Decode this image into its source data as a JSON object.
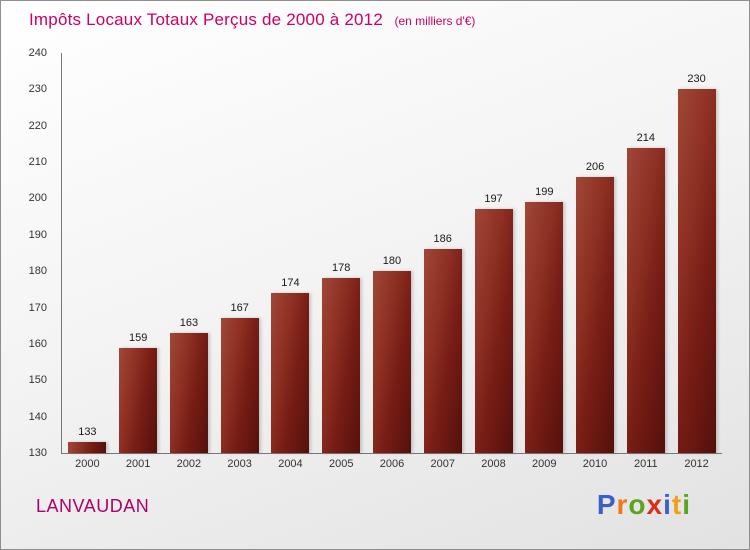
{
  "header": {
    "title": "Impôts Locaux Totaux Perçus de 2000 à 2012",
    "subtitle": "(en milliers d'€)"
  },
  "footer": {
    "place": "LANVAUDAN",
    "logo": {
      "name": "Proxiti",
      "letters": [
        {
          "ch": "P",
          "color": "#3a5fc8"
        },
        {
          "ch": "r",
          "color": "#f07818"
        },
        {
          "ch": "o",
          "color": "#5aa41e"
        },
        {
          "ch": "x",
          "color": "#e02a1a"
        },
        {
          "ch": "i",
          "color": "#3a5fc8"
        },
        {
          "ch": "t",
          "color": "#f0a018"
        },
        {
          "ch": "i",
          "color": "#5aa41e"
        }
      ]
    }
  },
  "colors": {
    "title": "#cc0066",
    "bar_dark": "#54100b",
    "bar_light": "#a04838",
    "axis": "#777777",
    "tick_text": "#333333"
  },
  "chart_data": {
    "type": "bar",
    "title": "Impôts Locaux Totaux Perçus de 2000 à 2012",
    "subtitle": "(en milliers d'€)",
    "categories": [
      "2000",
      "2001",
      "2002",
      "2003",
      "2004",
      "2005",
      "2006",
      "2007",
      "2008",
      "2009",
      "2010",
      "2011",
      "2012"
    ],
    "values": [
      133,
      159,
      163,
      167,
      174,
      178,
      180,
      186,
      197,
      199,
      206,
      214,
      230
    ],
    "xlabel": "",
    "ylabel": "",
    "ylim": [
      130,
      240
    ],
    "ytick_step": 10,
    "grid": false,
    "legend": false,
    "value_labels": true
  }
}
